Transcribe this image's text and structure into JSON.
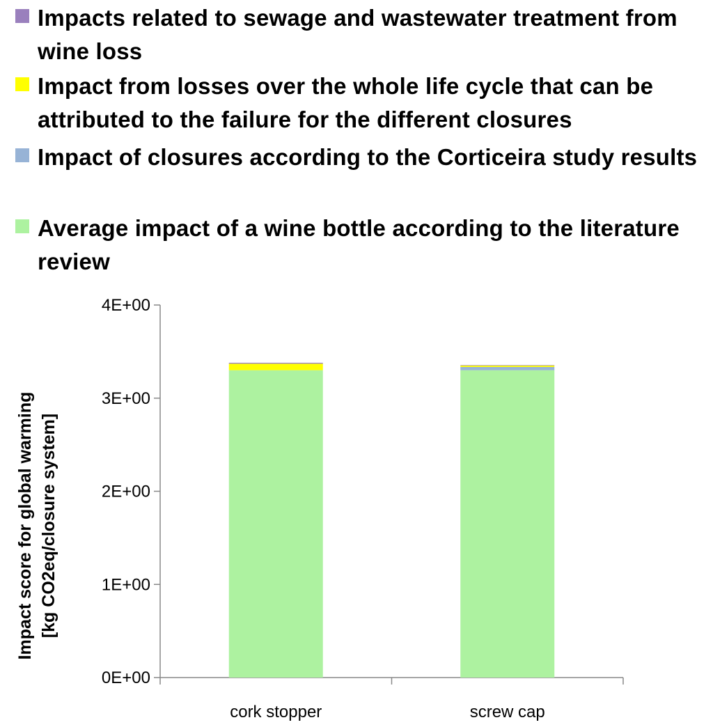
{
  "chart_data": {
    "type": "bar",
    "stacked": true,
    "categories": [
      "cork stopper",
      "screw cap"
    ],
    "series": [
      {
        "name": "Average impact of a wine bottle according to the literature review",
        "color": "#adf2a0",
        "values": [
          3.3,
          3.3
        ]
      },
      {
        "name": "Impact of closures according to the Corticeira study results",
        "color": "#97b3d6",
        "values": [
          0.0,
          0.035
        ]
      },
      {
        "name": "Impact from losses over the whole life cycle that can be attributed to the failure for the different closures",
        "color": "#ffff00",
        "values": [
          0.07,
          0.015
        ]
      },
      {
        "name": "Impacts related to sewage and wastewater treatment from wine loss",
        "color": "#9a80bd",
        "values": [
          0.01,
          0.005
        ]
      }
    ],
    "ylabel_lines": [
      "Impact score for global warming",
      "[kg  CO2eq/closure system]"
    ],
    "yticks": [
      "0E+00",
      "1E+00",
      "2E+00",
      "3E+00",
      "4E+00"
    ],
    "ylim": [
      0,
      4
    ],
    "legend_order": [
      3,
      2,
      1,
      0
    ],
    "legend_position": "top"
  }
}
